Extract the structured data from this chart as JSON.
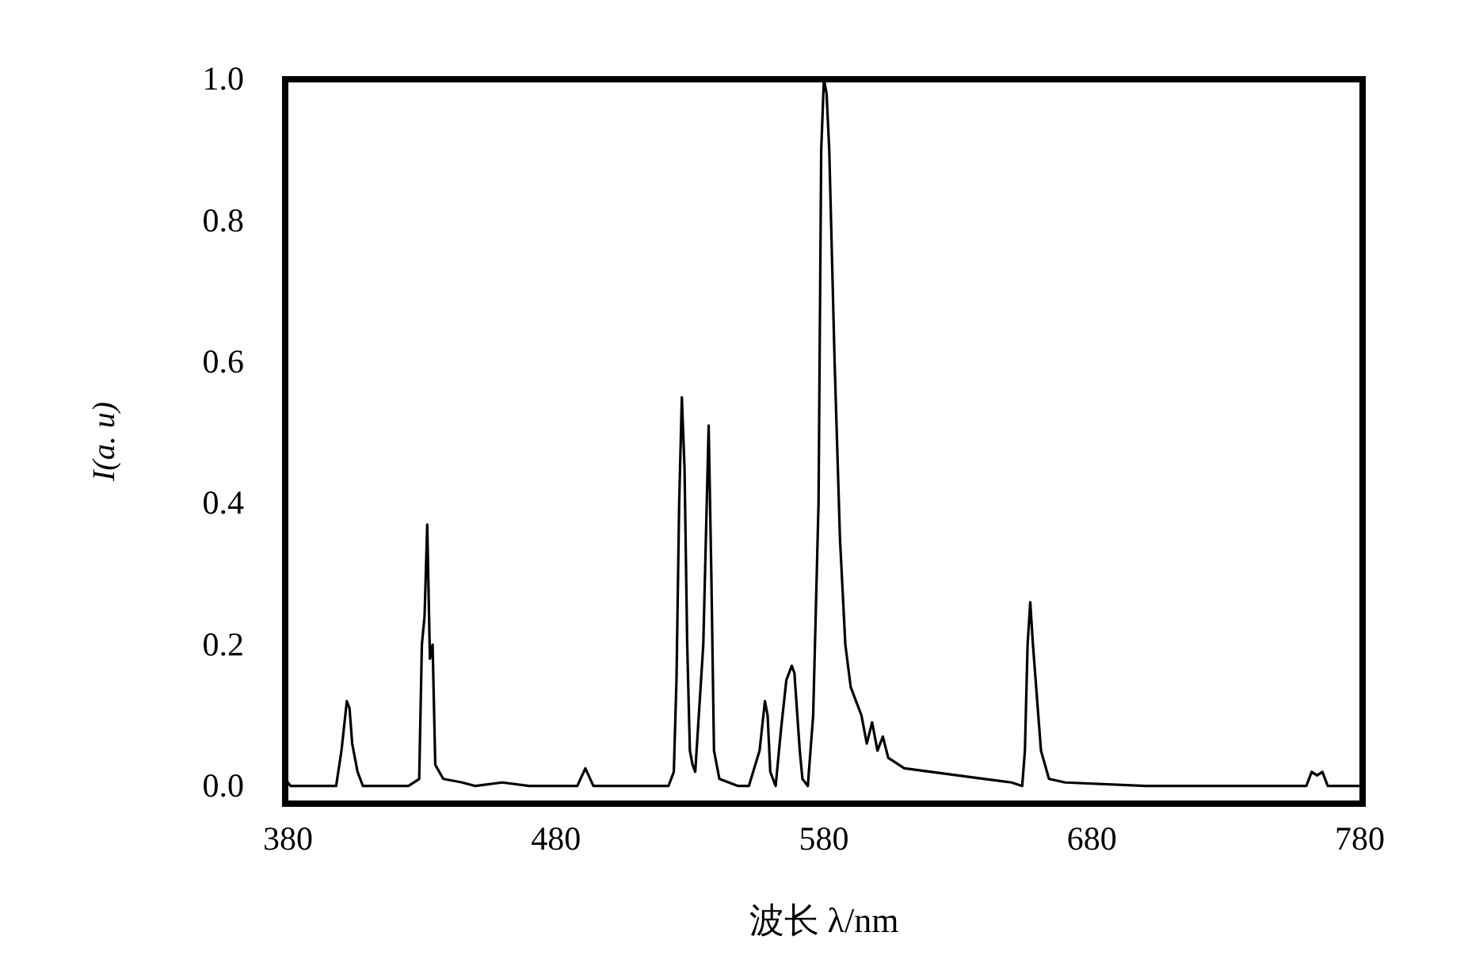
{
  "chart_data": {
    "type": "line",
    "xlabel": "波长 λ/nm",
    "ylabel": "I(a. u)",
    "xlim": [
      379,
      781
    ],
    "ylim": [
      -0.025,
      1.0
    ],
    "xticks": [
      380,
      480,
      580,
      680,
      780
    ],
    "yticks": [
      {
        "value": 0,
        "label": "0.0"
      },
      {
        "value": 0.2,
        "label": "0.2"
      },
      {
        "value": 0.4,
        "label": "0.4"
      },
      {
        "value": 0.6,
        "label": "0.6"
      },
      {
        "value": 0.8,
        "label": "0.8"
      },
      {
        "value": 1.0,
        "label": "1.0"
      }
    ],
    "grid": false,
    "marker": "none",
    "line_style": "solid",
    "series": [
      {
        "color": "#000000",
        "x": [
          379,
          381,
          398,
          400,
          402,
          403,
          404,
          406,
          408,
          425,
          429,
          430,
          431,
          432,
          433,
          434,
          435,
          438,
          445,
          450,
          460,
          470,
          488,
          491,
          494,
          500,
          510,
          522,
          524,
          525,
          526,
          527,
          528,
          529,
          530,
          531,
          532,
          535,
          537,
          538,
          539,
          541,
          548,
          552,
          556,
          558,
          559,
          560,
          562,
          564,
          566,
          568,
          569,
          571,
          572,
          574,
          576,
          578,
          579,
          580,
          581,
          582,
          584,
          586,
          588,
          590,
          594,
          596,
          598,
          600,
          602,
          604,
          610,
          620,
          640,
          650,
          654,
          655,
          656,
          657,
          658,
          660,
          661,
          664,
          670,
          700,
          760,
          762,
          764,
          766,
          768,
          780
        ],
        "values": [
          0.01,
          0.0,
          0.0,
          0.05,
          0.12,
          0.11,
          0.06,
          0.02,
          0.0,
          0.0,
          0.01,
          0.2,
          0.24,
          0.37,
          0.18,
          0.2,
          0.03,
          0.01,
          0.005,
          0.0,
          0.005,
          0.0,
          0.0,
          0.025,
          0.0,
          0.0,
          0.0,
          0.0,
          0.02,
          0.15,
          0.4,
          0.55,
          0.45,
          0.2,
          0.05,
          0.03,
          0.02,
          0.2,
          0.51,
          0.3,
          0.05,
          0.01,
          0.0,
          0.0,
          0.05,
          0.12,
          0.1,
          0.02,
          0.0,
          0.08,
          0.15,
          0.17,
          0.16,
          0.05,
          0.01,
          0.0,
          0.1,
          0.4,
          0.9,
          1.0,
          0.98,
          0.9,
          0.6,
          0.35,
          0.2,
          0.14,
          0.1,
          0.06,
          0.09,
          0.05,
          0.07,
          0.04,
          0.025,
          0.02,
          0.01,
          0.005,
          0.0,
          0.05,
          0.2,
          0.26,
          0.2,
          0.1,
          0.05,
          0.01,
          0.005,
          0.0,
          0.0,
          0.02,
          0.015,
          0.02,
          0.0,
          0.0
        ]
      }
    ]
  }
}
